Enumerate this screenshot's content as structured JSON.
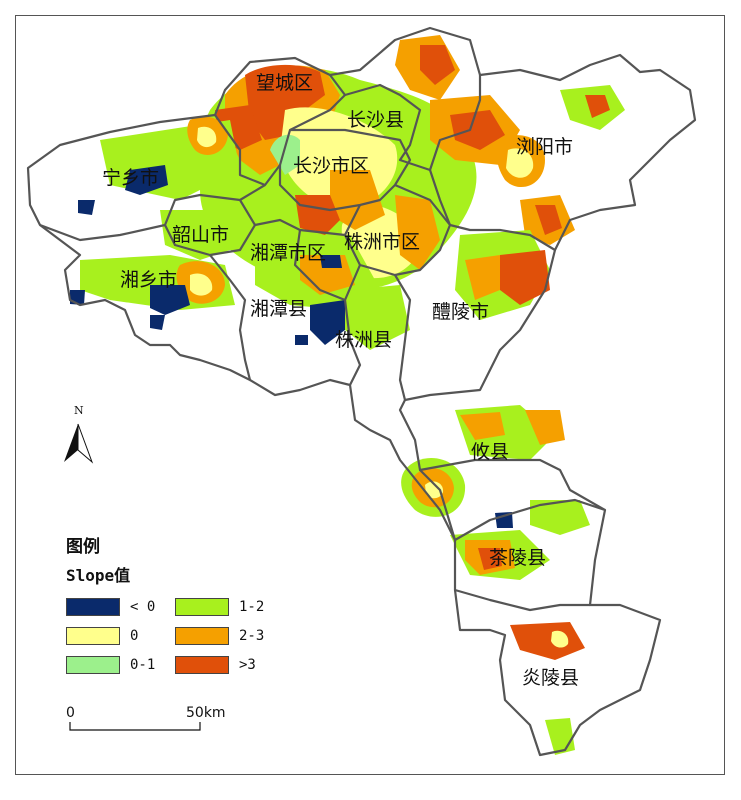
{
  "regions": [
    {
      "id": "wangcheng",
      "label": "望城区"
    },
    {
      "id": "changshaxian",
      "label": "长沙县"
    },
    {
      "id": "changshashiqu",
      "label": "长沙市区"
    },
    {
      "id": "liuyang",
      "label": "浏阳市"
    },
    {
      "id": "ningxiang",
      "label": "宁乡市"
    },
    {
      "id": "shaoshan",
      "label": "韶山市"
    },
    {
      "id": "xiangtanshiqu",
      "label": "湘潭市区"
    },
    {
      "id": "zhuzhoushiqu",
      "label": "株洲市区"
    },
    {
      "id": "xiangxiang",
      "label": "湘乡市"
    },
    {
      "id": "xiangtanxian",
      "label": "湘潭县"
    },
    {
      "id": "liling",
      "label": "醴陵市"
    },
    {
      "id": "zhuzhouxian",
      "label": "株洲县"
    },
    {
      "id": "youxian",
      "label": "攸县"
    },
    {
      "id": "chaling",
      "label": "茶陵县"
    },
    {
      "id": "yanling",
      "label": "炎陵县"
    }
  ],
  "north_arrow": {
    "label": "N"
  },
  "legend": {
    "title": "图例",
    "subtitle": "Slope值",
    "items": [
      {
        "label": "< 0",
        "color": "#0a2a6b"
      },
      {
        "label": "0",
        "color": "#ffff8c"
      },
      {
        "label": "0-1",
        "color": "#9cf08c"
      },
      {
        "label": "1-2",
        "color": "#a8f01e"
      },
      {
        "label": "2-3",
        "color": "#f5a000"
      },
      {
        "label": ">3",
        "color": "#e0500a"
      }
    ]
  },
  "scale_bar": {
    "start": "0",
    "end": "50",
    "unit": "km"
  },
  "colors": {
    "boundary": "#555555",
    "neg": "#0a2a6b",
    "zero": "#ffff8c",
    "low": "#9cf08c",
    "mid": "#a8f01e",
    "high": "#f5a000",
    "top": "#e0500a"
  }
}
